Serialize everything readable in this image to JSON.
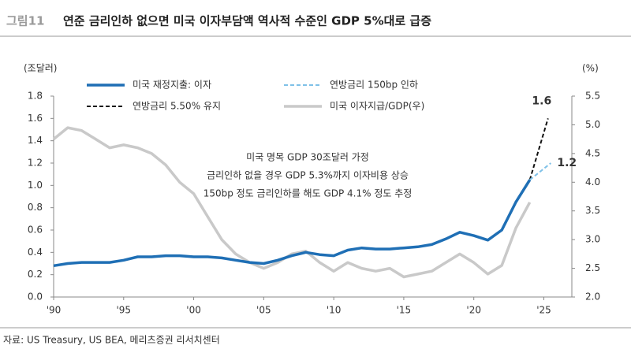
{
  "chart_data": {
    "type": "line",
    "figure_label": "그림11",
    "title": "연준 금리인하 없으면 미국 이자부담액 역사적 수준인 GDP 5%대로 급증",
    "y_axis_label": "(조달러)",
    "y2_axis_label": "(%)",
    "source": "자료: US Treasury, US BEA, 메리츠증권 리서치센터",
    "annotation": [
      "미국 명목 GDP 30조달러 가정",
      "금리인하 없을 경우 GDP 5.3%까지 이자비용 상승",
      "150bp 정도 금리인하를 해도 GDP 4.1% 정도 추정"
    ],
    "xlim": [
      1990,
      2027
    ],
    "xticks": [
      {
        "value": 1990,
        "label": "'90"
      },
      {
        "value": 1995,
        "label": "'95"
      },
      {
        "value": 2000,
        "label": "'00"
      },
      {
        "value": 2005,
        "label": "'05"
      },
      {
        "value": 2010,
        "label": "'10"
      },
      {
        "value": 2015,
        "label": "'15"
      },
      {
        "value": 2020,
        "label": "'20"
      },
      {
        "value": 2025,
        "label": "'25"
      }
    ],
    "ylim": [
      0,
      1.8
    ],
    "yticks": [
      {
        "value": 0,
        "label": "0.0"
      },
      0.2,
      0.4,
      0.6,
      0.8,
      {
        "value": 1,
        "label": "1.0"
      },
      1.2,
      1.4,
      1.6,
      1.8
    ],
    "y2lim": [
      2,
      5.5
    ],
    "y2ticks": [
      {
        "value": 2,
        "label": "2.0"
      },
      2.5,
      {
        "value": 3,
        "label": "3.0"
      },
      3.5,
      {
        "value": 4,
        "label": "4.0"
      },
      4.5,
      {
        "value": 5,
        "label": "5.0"
      },
      5.5
    ],
    "series": [
      {
        "name": "미국 재정지출: 이자",
        "color": "#1f6fb5",
        "style": "solid",
        "axis": "y",
        "x": [
          1990,
          1991,
          1992,
          1993,
          1994,
          1995,
          1996,
          1997,
          1998,
          1999,
          2000,
          2001,
          2002,
          2003,
          2004,
          2005,
          2006,
          2007,
          2008,
          2009,
          2010,
          2011,
          2012,
          2013,
          2014,
          2015,
          2016,
          2017,
          2018,
          2019,
          2020,
          2021,
          2022,
          2023,
          2024
        ],
        "values": [
          0.28,
          0.3,
          0.31,
          0.31,
          0.31,
          0.33,
          0.36,
          0.36,
          0.37,
          0.37,
          0.36,
          0.36,
          0.35,
          0.33,
          0.31,
          0.3,
          0.33,
          0.37,
          0.4,
          0.38,
          0.37,
          0.42,
          0.44,
          0.43,
          0.43,
          0.44,
          0.45,
          0.47,
          0.52,
          0.58,
          0.55,
          0.51,
          0.6,
          0.85,
          1.05
        ]
      },
      {
        "name": "연방금리 150bp 인하",
        "color": "#7fc1e8",
        "style": "dashed",
        "axis": "y",
        "x": [
          2024,
          2025.5
        ],
        "values": [
          1.05,
          1.2
        ],
        "value_labels": [
          null,
          "1.2"
        ]
      },
      {
        "name": "연방금리 5.50% 유지",
        "color": "#111111",
        "style": "dashed",
        "axis": "y",
        "x": [
          2024,
          2025.3
        ],
        "values": [
          1.05,
          1.6
        ],
        "value_labels": [
          null,
          "1.6"
        ]
      },
      {
        "name": "미국 이자지급/GDP(우)",
        "color": "#c9c9c9",
        "style": "solid",
        "axis": "y2",
        "x": [
          1990,
          1991,
          1992,
          1993,
          1994,
          1995,
          1996,
          1997,
          1998,
          1999,
          2000,
          2001,
          2002,
          2003,
          2004,
          2005,
          2006,
          2007,
          2008,
          2009,
          2010,
          2011,
          2012,
          2013,
          2014,
          2015,
          2016,
          2017,
          2018,
          2019,
          2020,
          2021,
          2022,
          2023,
          2024
        ],
        "values": [
          4.75,
          4.95,
          4.9,
          4.75,
          4.6,
          4.65,
          4.6,
          4.5,
          4.3,
          4.0,
          3.8,
          3.4,
          3.0,
          2.75,
          2.6,
          2.5,
          2.6,
          2.75,
          2.8,
          2.6,
          2.45,
          2.6,
          2.5,
          2.45,
          2.5,
          2.35,
          2.4,
          2.45,
          2.6,
          2.75,
          2.6,
          2.4,
          2.55,
          3.2,
          3.65
        ]
      }
    ]
  }
}
